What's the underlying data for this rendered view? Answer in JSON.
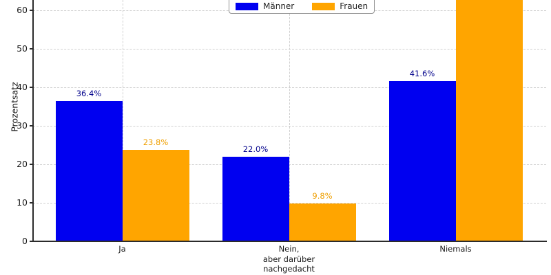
{
  "chart_data": {
    "type": "bar",
    "title": "",
    "ylabel": "Prozentsatz",
    "xlabel": "",
    "categories": [
      "Ja",
      "Nein,\naber darüber\nnachgedacht",
      "Niemals"
    ],
    "series": [
      {
        "name": "Männer",
        "color": "#0000f0",
        "label_color": "#00008b",
        "values": [
          36.4,
          22.0,
          41.6
        ],
        "value_labels": [
          "36.4%",
          "22.0%",
          "41.6%"
        ]
      },
      {
        "name": "Frauen",
        "color": "#ffa500",
        "label_color": "#ef9f00",
        "values": [
          23.8,
          9.8,
          66.4
        ],
        "value_labels": [
          "23.8%",
          "9.8%",
          ""
        ],
        "note": "Third bar extends past the top edge of the visible area; its value label is not visible. Value 66.4 estimated (series sums to 100%)."
      }
    ],
    "yticks": [
      "0",
      "10",
      "20",
      "30",
      "40",
      "50",
      "60"
    ],
    "ylim_visible": [
      0,
      62.7
    ],
    "grid": {
      "axis": "both",
      "style": "dashed",
      "color": "#cfcfcf"
    },
    "legend": {
      "position": "top-center",
      "frame": true
    }
  }
}
